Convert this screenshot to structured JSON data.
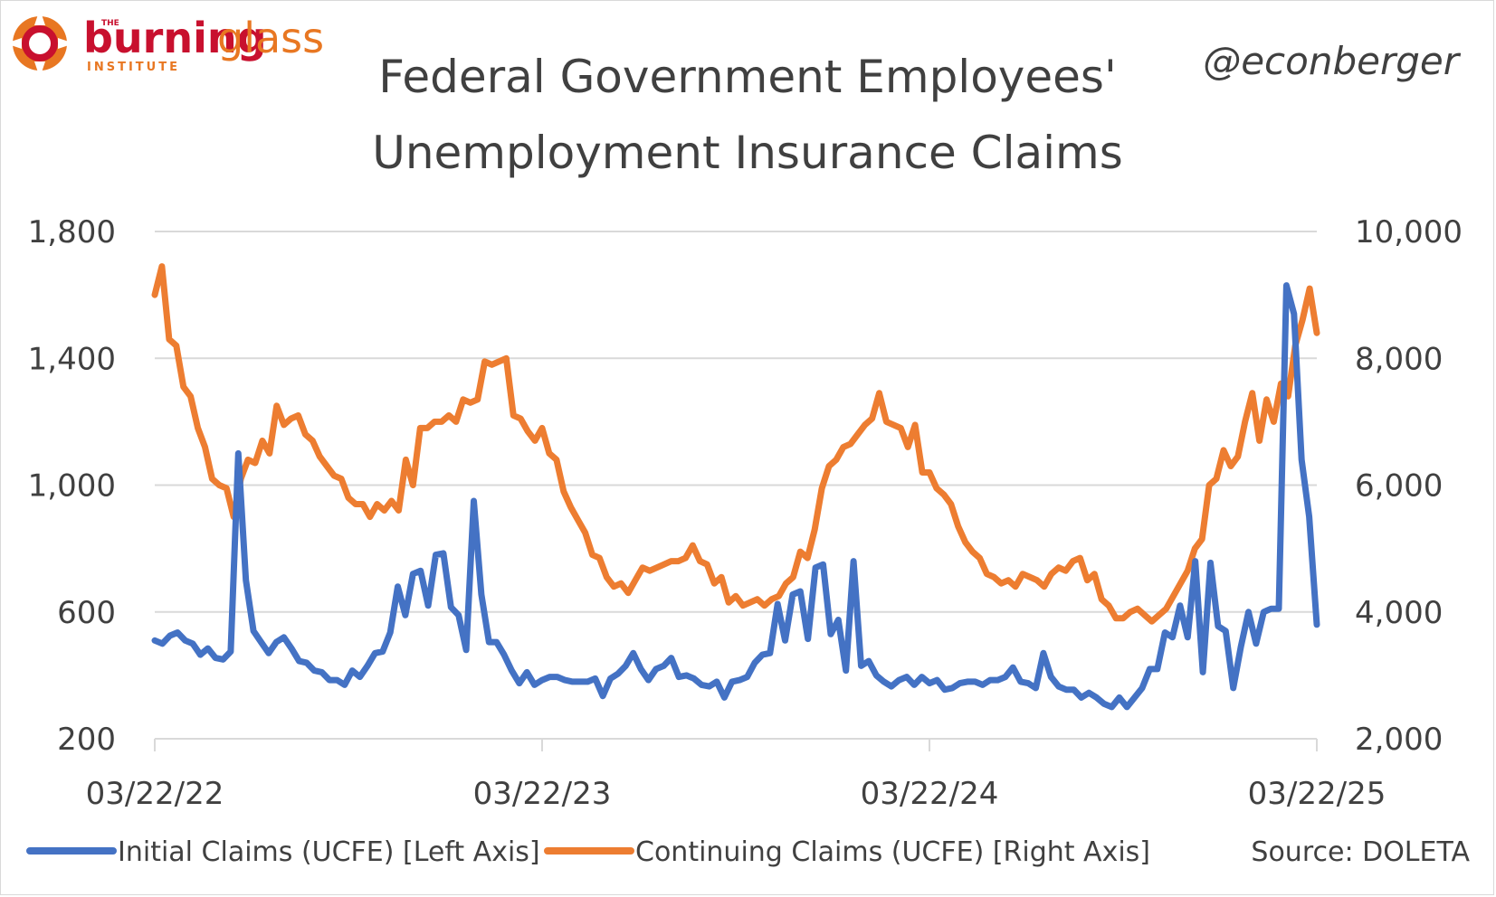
{
  "branding": {
    "logo_the": "THE",
    "logo_word1": "burning",
    "logo_word2": "glass",
    "logo_sub": "INSTITUTE",
    "handle": "@econberger"
  },
  "colors": {
    "initial": "#4472c4",
    "continuing": "#ed7d31",
    "grid": "#d9d9d9",
    "text": "#404040",
    "brand_red": "#c8102e",
    "brand_orange": "#e87722"
  },
  "chart_data": {
    "type": "line",
    "title": "Federal Government Employees' Unemployment Insurance Claims",
    "title_lines": [
      "Federal Government Employees'",
      "Unemployment Insurance Claims"
    ],
    "x_tick_labels": [
      "03/22/22",
      "03/22/23",
      "03/22/24",
      "03/22/25"
    ],
    "x_start": "03/22/22",
    "x_end": "03/22/25",
    "left_axis": {
      "ylim": [
        200,
        1800
      ],
      "ticks": [
        "200",
        "600",
        "1,000",
        "1,400",
        "1,800"
      ],
      "tick_values": [
        200,
        600,
        1000,
        1400,
        1800
      ]
    },
    "right_axis": {
      "ylim": [
        2000,
        10000
      ],
      "ticks": [
        "2,000",
        "4,000",
        "6,000",
        "8,000",
        "10,000"
      ],
      "tick_values": [
        2000,
        4000,
        6000,
        8000,
        10000
      ]
    },
    "grid": true,
    "legend_position": "bottom",
    "source": "Source: DOLETA",
    "series": [
      {
        "name": "Initial Claims (UCFE) [Left Axis]",
        "axis": "left",
        "values": [
          510,
          500,
          525,
          535,
          510,
          500,
          465,
          485,
          455,
          450,
          475,
          1100,
          700,
          540,
          505,
          470,
          505,
          520,
          485,
          445,
          440,
          415,
          410,
          385,
          385,
          370,
          415,
          395,
          430,
          470,
          475,
          535,
          680,
          590,
          720,
          730,
          620,
          780,
          785,
          615,
          590,
          480,
          950,
          655,
          505,
          505,
          465,
          415,
          375,
          410,
          370,
          385,
          395,
          395,
          385,
          380,
          380,
          380,
          390,
          335,
          390,
          405,
          430,
          470,
          420,
          385,
          420,
          430,
          455,
          395,
          400,
          390,
          370,
          365,
          380,
          330,
          380,
          385,
          395,
          440,
          465,
          470,
          625,
          510,
          655,
          665,
          515,
          740,
          750,
          530,
          575,
          415,
          760,
          430,
          445,
          400,
          380,
          365,
          385,
          395,
          370,
          395,
          375,
          385,
          355,
          360,
          375,
          380,
          380,
          370,
          385,
          385,
          395,
          425,
          380,
          375,
          360,
          470,
          395,
          365,
          355,
          355,
          330,
          345,
          330,
          310,
          300,
          330,
          300,
          330,
          360,
          420,
          420,
          535,
          520,
          620,
          520,
          760,
          410,
          755,
          555,
          540,
          360,
          490,
          600,
          500,
          600,
          610,
          610,
          1630,
          1540,
          1080,
          900,
          560
        ]
      },
      {
        "name": "Continuing Claims (UCFE) [Right Axis]",
        "axis": "right",
        "values": [
          9000,
          9450,
          8300,
          8200,
          7550,
          7400,
          6900,
          6600,
          6100,
          6000,
          5950,
          5500,
          6100,
          6400,
          6350,
          6700,
          6500,
          7250,
          6950,
          7050,
          7100,
          6800,
          6700,
          6450,
          6300,
          6150,
          6100,
          5800,
          5700,
          5700,
          5500,
          5700,
          5600,
          5750,
          5600,
          6400,
          6000,
          6900,
          6900,
          7000,
          7000,
          7100,
          7000,
          7350,
          7300,
          7350,
          7950,
          7900,
          7950,
          8000,
          7100,
          7050,
          6850,
          6700,
          6900,
          6500,
          6400,
          5900,
          5650,
          5450,
          5250,
          4900,
          4850,
          4550,
          4400,
          4450,
          4300,
          4500,
          4700,
          4650,
          4700,
          4750,
          4800,
          4800,
          4850,
          5050,
          4800,
          4750,
          4450,
          4550,
          4150,
          4250,
          4100,
          4150,
          4200,
          4100,
          4200,
          4250,
          4450,
          4550,
          4950,
          4850,
          5300,
          5950,
          6300,
          6400,
          6600,
          6650,
          6800,
          6950,
          7050,
          7450,
          7000,
          6950,
          6900,
          6600,
          6950,
          6200,
          6200,
          5950,
          5850,
          5700,
          5350,
          5100,
          4950,
          4850,
          4600,
          4550,
          4450,
          4500,
          4400,
          4600,
          4550,
          4500,
          4400,
          4600,
          4700,
          4650,
          4800,
          4850,
          4500,
          4600,
          4200,
          4100,
          3900,
          3900,
          4000,
          4050,
          3950,
          3850,
          3950,
          4050,
          4250,
          4450,
          4650,
          5000,
          5150,
          6000,
          6100,
          6550,
          6300,
          6450,
          7000,
          7450,
          6700,
          7350,
          7000,
          7600,
          7400,
          8200,
          8600,
          9100,
          8400
        ]
      }
    ]
  }
}
